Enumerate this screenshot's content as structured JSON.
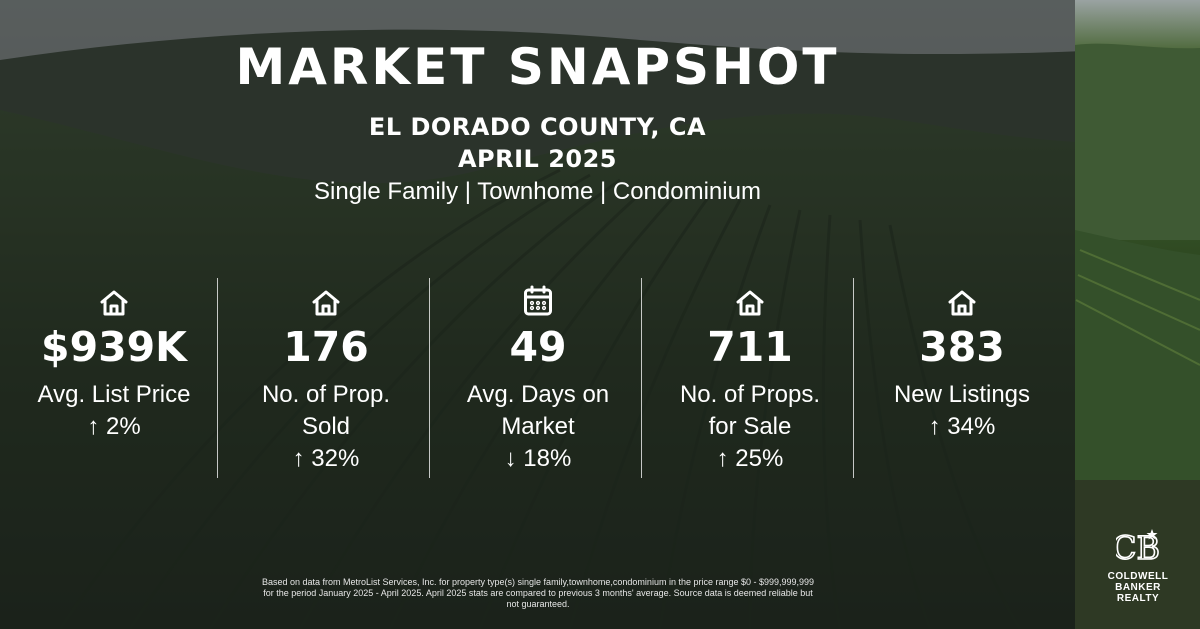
{
  "header": {
    "title": "MARKET SNAPSHOT",
    "region": "EL DORADO COUNTY, CA",
    "period": "APRIL 2025",
    "property_types": "Single Family | Townhome | Condominium"
  },
  "stats": [
    {
      "icon": "house-icon",
      "value": "$939K",
      "label_1": "Avg. List Price",
      "label_2": "",
      "change": "↑ 2%"
    },
    {
      "icon": "house-icon",
      "value": "176",
      "label_1": "No. of Prop.",
      "label_2": "Sold",
      "change": "↑ 32%"
    },
    {
      "icon": "calendar-icon",
      "value": "49",
      "label_1": "Avg. Days on",
      "label_2": "Market",
      "change": "↓ 18%"
    },
    {
      "icon": "house-icon",
      "value": "711",
      "label_1": "No. of Props.",
      "label_2": "for Sale",
      "change": "↑ 25%"
    },
    {
      "icon": "house-icon",
      "value": "383",
      "label_1": "New Listings",
      "label_2": "",
      "change": "↑ 34%"
    }
  ],
  "footnote": {
    "line_1": "Based on data from MetroList Services, Inc. for property type(s) single family,townhome,condominium in the price range $0 - $999,999,999",
    "line_2": "for the period January 2025 - April 2025. April 2025 stats are compared to previous 3 months' average. Source data is deemed reliable but",
    "line_3": "not guaranteed."
  },
  "logo": {
    "monogram": "CB",
    "line_1": "COLDWELL",
    "line_2": "BANKER",
    "line_3": "REALTY"
  },
  "colors": {
    "overlay": "#1c1e1e",
    "vineyard_dark": "#1e2a1a",
    "vineyard_green": "#2f4a25",
    "sky": "#8f9898",
    "text": "#ffffff"
  }
}
